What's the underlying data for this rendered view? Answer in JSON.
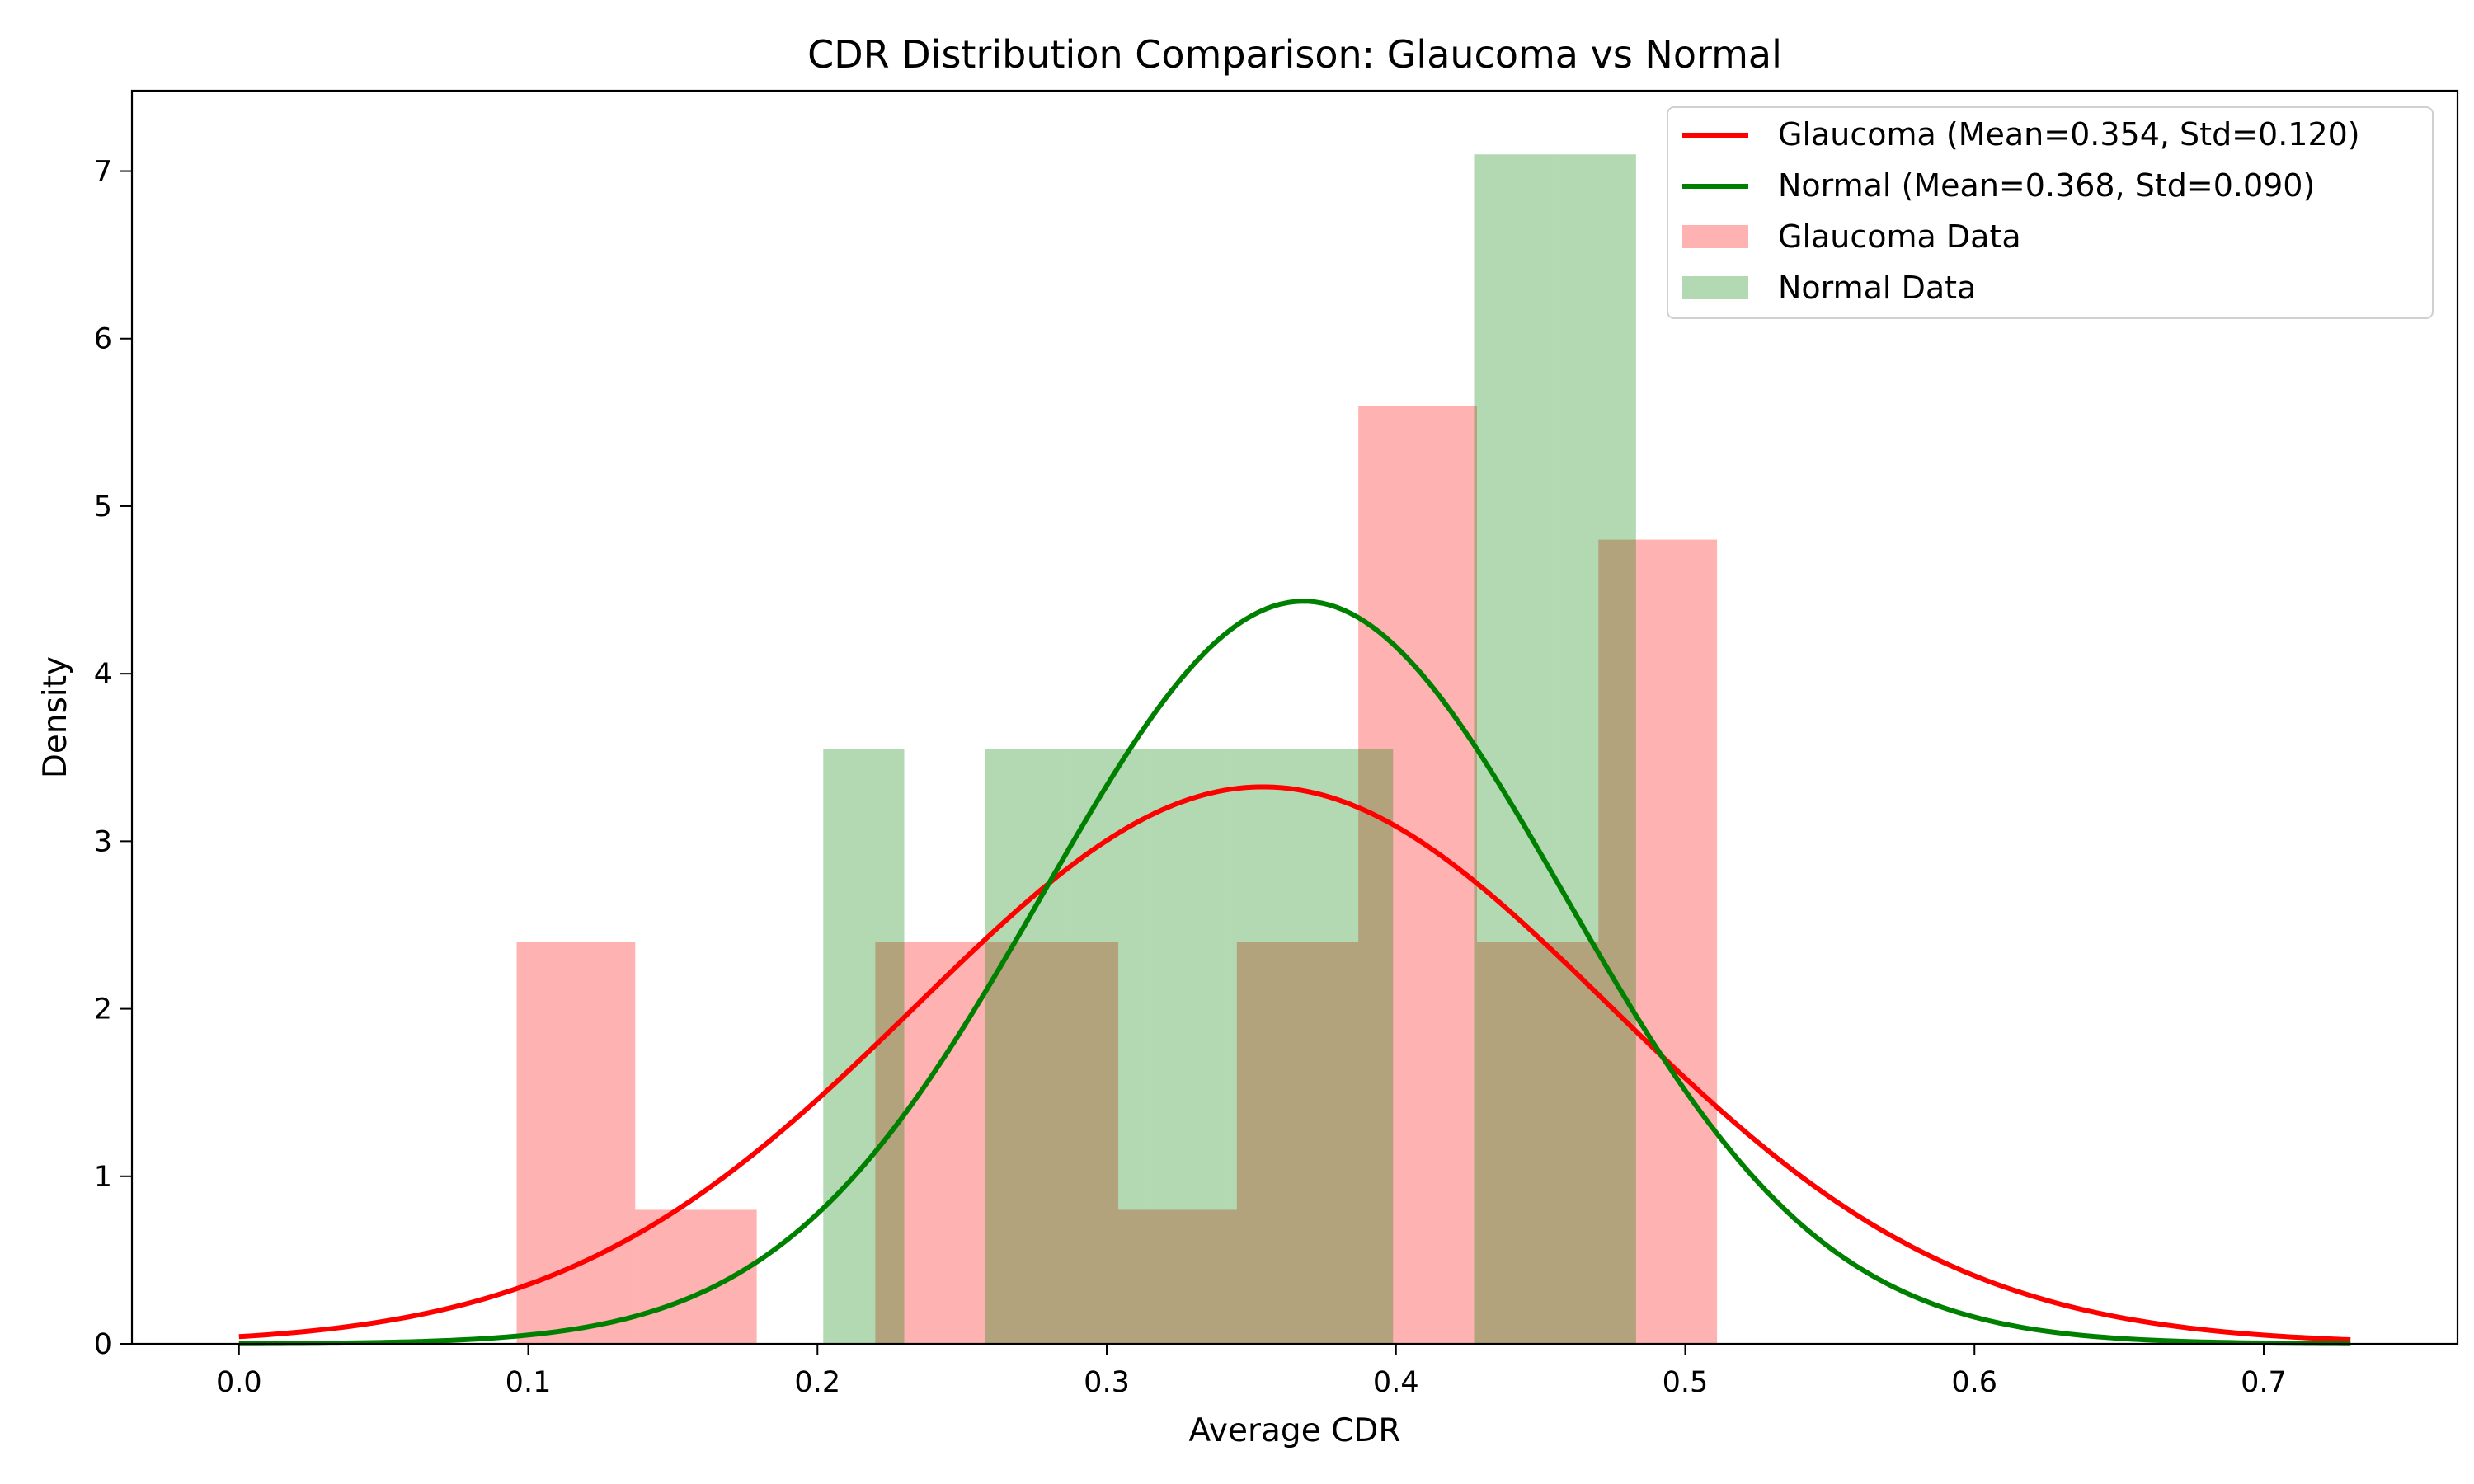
{
  "chart_data": {
    "type": "histogram+line",
    "title": "CDR Distribution Comparison: Glaucoma vs Normal",
    "xlabel": "Average CDR",
    "ylabel": "Density",
    "xlim": [
      -0.037,
      0.767
    ],
    "ylim": [
      0,
      7.48
    ],
    "xticks": [
      "0.0",
      "0.1",
      "0.2",
      "0.3",
      "0.4",
      "0.5",
      "0.6",
      "0.7"
    ],
    "yticks": [
      "0",
      "1",
      "2",
      "3",
      "4",
      "5",
      "6",
      "7"
    ],
    "grid": false,
    "legend_position": "top-right",
    "legend": [
      "Glaucoma (Mean=0.354, Std=0.120)",
      "Normal (Mean=0.368, Std=0.090)",
      "Glaucoma Data",
      "Normal Data"
    ],
    "series": [
      {
        "name": "Glaucoma Data",
        "kind": "histogram",
        "color": "#ff0000",
        "opacity": 0.3,
        "bins": [
          [
            0.096,
            0.137,
            2.4
          ],
          [
            0.137,
            0.179,
            0.8
          ],
          [
            0.179,
            0.22,
            0
          ],
          [
            0.22,
            0.262,
            2.4
          ],
          [
            0.262,
            0.304,
            2.4
          ],
          [
            0.304,
            0.345,
            0.8
          ],
          [
            0.345,
            0.387,
            2.4
          ],
          [
            0.387,
            0.428,
            5.6
          ],
          [
            0.428,
            0.47,
            2.4
          ],
          [
            0.47,
            0.511,
            4.8
          ]
        ]
      },
      {
        "name": "Normal Data",
        "kind": "histogram",
        "color": "#008000",
        "opacity": 0.3,
        "bins": [
          [
            0.202,
            0.23,
            3.55
          ],
          [
            0.23,
            0.258,
            0
          ],
          [
            0.258,
            0.286,
            3.55
          ],
          [
            0.286,
            0.314,
            3.55
          ],
          [
            0.314,
            0.343,
            3.55
          ],
          [
            0.343,
            0.371,
            3.55
          ],
          [
            0.371,
            0.399,
            3.55
          ],
          [
            0.399,
            0.427,
            0
          ],
          [
            0.427,
            0.455,
            7.1
          ],
          [
            0.455,
            0.483,
            7.1
          ]
        ]
      },
      {
        "name": "Glaucoma (Mean=0.354, Std=0.120)",
        "kind": "normal_pdf",
        "color": "#ff0000",
        "mean": 0.354,
        "std": 0.12,
        "x_range": [
          0,
          0.73
        ]
      },
      {
        "name": "Normal (Mean=0.368, Std=0.090)",
        "kind": "normal_pdf",
        "color": "#008000",
        "mean": 0.368,
        "std": 0.09,
        "x_range": [
          0,
          0.73
        ]
      }
    ]
  }
}
